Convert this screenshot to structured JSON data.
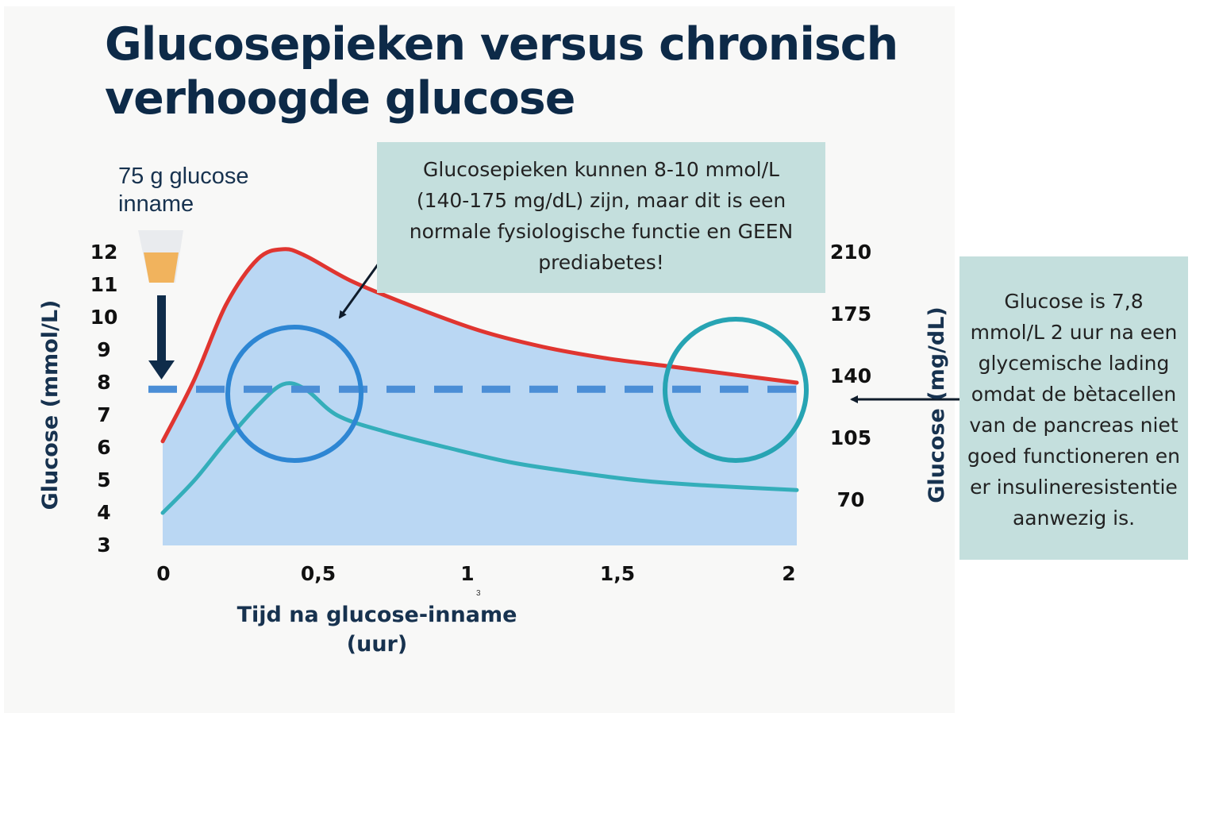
{
  "title_line1": "Glucosepieken versus chronisch",
  "title_line2": "verhoogde glucose",
  "intake_line1": "75 g glucose",
  "intake_line2": "inname",
  "callout_top": [
    "Glucosepieken kunnen 8-10 mmol/L",
    "(140-175 mg/dL) zijn, maar dit is een",
    "normale fysiologische functie en GEEN",
    "prediabetes!"
  ],
  "callout_right": [
    "Glucose is 7,8",
    "mmol/L 2 uur na een",
    "glycemische lading",
    "omdat de bètacellen",
    "van de pancreas niet",
    "goed functioneren en",
    "er insulineresistentie",
    "aanwezig is."
  ],
  "x_axis_label_line1": "Tijd na glucose-inname",
  "x_axis_label_line2": "(uur)",
  "stray_mark": "3",
  "colors": {
    "title": "#0d2a48",
    "red_curve": "#e03530",
    "teal_curve": "#34aeba",
    "area_fill": "#bad7f3",
    "threshold": "#4b8ed6",
    "circle_left": "#2e86d3",
    "circle_right": "#27a4b3",
    "callout_bg": "#c4dfdd"
  },
  "chart_data": {
    "type": "line",
    "xlabel": "Tijd na glucose-inname (uur)",
    "ylabel": "Glucose (mmol/L)",
    "ylabel_right": "Glucose (mg/dL)",
    "x_ticks": [
      "0",
      "0,5",
      "1",
      "1,5",
      "2"
    ],
    "x_tick_values": [
      0,
      0.5,
      1,
      1.5,
      2
    ],
    "y_ticks_left": [
      "3",
      "4",
      "5",
      "6",
      "7",
      "8",
      "9",
      "10",
      "11",
      "12"
    ],
    "y_ticks_right": [
      "70",
      "105",
      "140",
      "175",
      "210"
    ],
    "xlim": [
      0,
      2
    ],
    "ylim": [
      3,
      12
    ],
    "threshold_mmol": 7.8,
    "series": [
      {
        "x": [
          0,
          0.1,
          0.2,
          0.3,
          0.38,
          0.45,
          0.6,
          0.8,
          1.0,
          1.2,
          1.4,
          1.6,
          1.8,
          2.0
        ],
        "y": [
          6.2,
          8.1,
          10.4,
          11.8,
          12.1,
          11.9,
          11.1,
          10.3,
          9.6,
          9.1,
          8.75,
          8.5,
          8.25,
          8.0
        ]
      },
      {
        "x": [
          0,
          0.1,
          0.2,
          0.3,
          0.38,
          0.45,
          0.55,
          0.7,
          0.9,
          1.1,
          1.3,
          1.5,
          1.7,
          2.0
        ],
        "y": [
          4.0,
          5.0,
          6.2,
          7.3,
          7.95,
          7.8,
          7.0,
          6.5,
          6.0,
          5.55,
          5.25,
          5.0,
          4.85,
          4.7
        ]
      }
    ]
  }
}
